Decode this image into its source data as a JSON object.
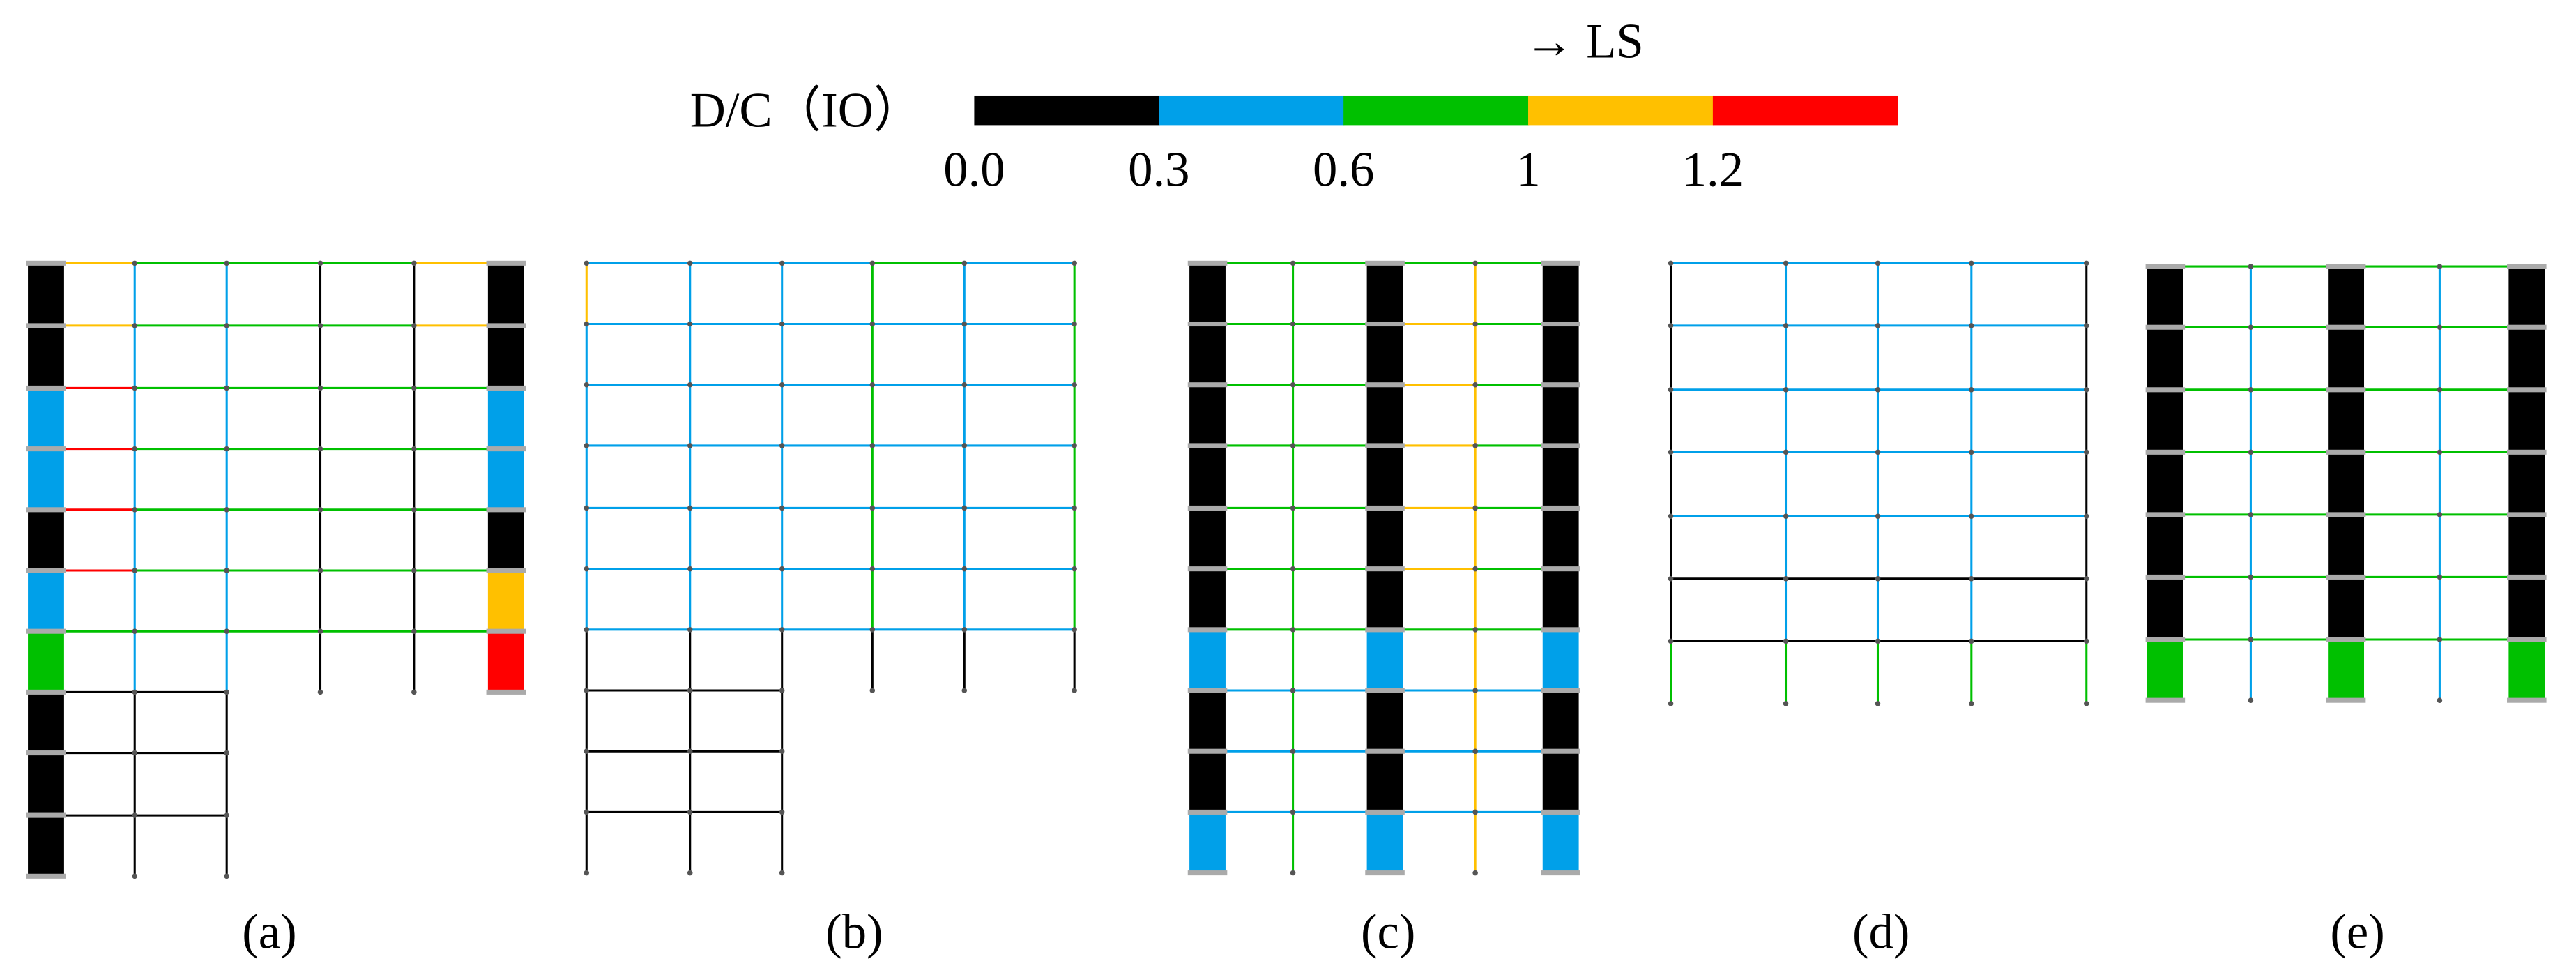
{
  "legend": {
    "label": "D/C（IO）",
    "annotation": "→ LS",
    "ticks": [
      {
        "value": 0,
        "label": "0.0"
      },
      0.3,
      0.6,
      1,
      1.2
    ],
    "colors": [
      "#000000",
      "#00a0e9",
      "#00c000",
      "#ffc000",
      "#ff0000"
    ]
  },
  "panels": [
    "(a)",
    "(b)",
    "(c)",
    "(d)",
    "(e)"
  ]
}
